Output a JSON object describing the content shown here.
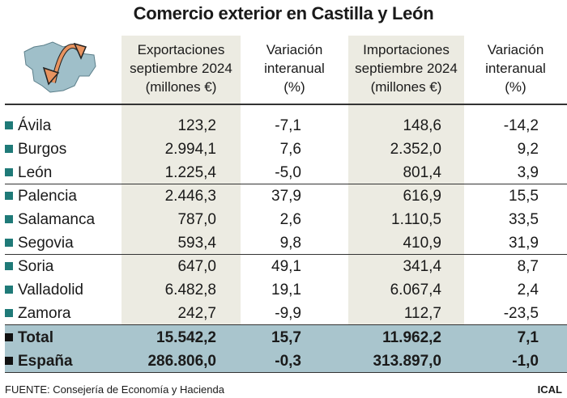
{
  "title": "Comercio exterior en Castilla y León",
  "colors": {
    "shade": "#ecebe2",
    "band": "#a9c5cd",
    "marker": "#1f7a78",
    "arrow": "#e8935f",
    "map": "#9fbfc9"
  },
  "icon": "castilla-y-leon-map-with-arrows-icon",
  "chart_data": {
    "type": "table",
    "columns": [
      {
        "l1": "Exportaciones",
        "l2": "septiembre 2024",
        "l3": "(millones €)"
      },
      {
        "l1": "Variación",
        "l2": "interanual",
        "l3": "(%)"
      },
      {
        "l1": "Importaciones",
        "l2": "septiembre 2024",
        "l3": "(millones €)"
      },
      {
        "l1": "Variación",
        "l2": "interanual",
        "l3": "(%)"
      }
    ],
    "rows": [
      {
        "name": "Ávila",
        "v": [
          "123,2",
          "-7,1",
          "148,6",
          "-14,2"
        ]
      },
      {
        "name": "Burgos",
        "v": [
          "2.994,1",
          "7,6",
          "2.352,0",
          "9,2"
        ]
      },
      {
        "name": "León",
        "v": [
          "1.225,4",
          "-5,0",
          "801,4",
          "3,9"
        ]
      },
      {
        "name": "Palencia",
        "v": [
          "2.446,3",
          "37,9",
          "616,9",
          "15,5"
        ]
      },
      {
        "name": "Salamanca",
        "v": [
          "787,0",
          "2,6",
          "1.110,5",
          "33,5"
        ]
      },
      {
        "name": "Segovia",
        "v": [
          "593,4",
          "9,8",
          "410,9",
          "31,9"
        ]
      },
      {
        "name": "Soria",
        "v": [
          "647,0",
          "49,1",
          "341,4",
          "8,7"
        ]
      },
      {
        "name": "Valladolid",
        "v": [
          "6.482,8",
          "19,1",
          "6.067,4",
          "2,4"
        ]
      },
      {
        "name": "Zamora",
        "v": [
          "242,7",
          "-9,9",
          "112,7",
          "-23,5"
        ]
      },
      {
        "name": "Total",
        "v": [
          "15.542,2",
          "15,7",
          "11.962,2",
          "7,1"
        ]
      },
      {
        "name": "España",
        "v": [
          "286.806,0",
          "-0,3",
          "313.897,0",
          "-1,0"
        ]
      }
    ]
  },
  "footer": {
    "source": "FUENTE: Consejería de Economía y Hacienda",
    "credit": "ICAL"
  }
}
